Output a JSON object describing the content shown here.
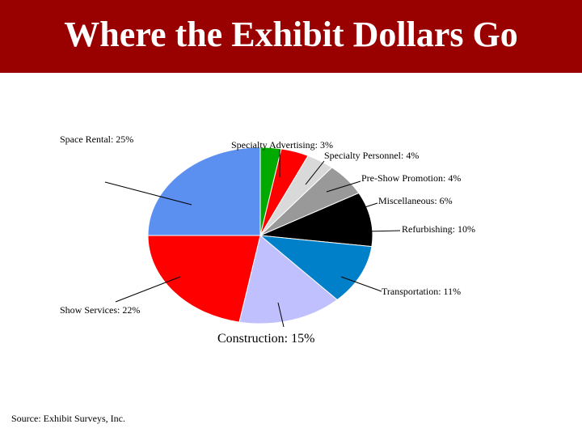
{
  "title": "Where the Exhibit Dollars Go",
  "source": "Source:  Exhibit Surveys, Inc.",
  "chart_data": {
    "type": "pie",
    "title": "Where the Exhibit Dollars Go",
    "slices": [
      {
        "label": "Specialty Advertising",
        "value": 3,
        "text": "Specialty Advertising:  3%",
        "color": "#00aa00"
      },
      {
        "label": "Specialty Personnel",
        "value": 4,
        "text": "Specialty Personnel:  4%",
        "color": "#ff0000"
      },
      {
        "label": "Pre-Show Promotion",
        "value": 4,
        "text": "Pre-Show Promotion:  4%",
        "color": "#d9d9d9"
      },
      {
        "label": "Miscellaneous",
        "value": 6,
        "text": "Miscellaneous:  6%",
        "color": "#999999"
      },
      {
        "label": "Refurbishing",
        "value": 10,
        "text": "Refurbishing:  10%",
        "color": "#000000"
      },
      {
        "label": "Transportation",
        "value": 11,
        "text": "Transportation:  11%",
        "color": "#0080c8"
      },
      {
        "label": "Construction",
        "value": 15,
        "text": "Construction:  15%",
        "color": "#c0c0ff"
      },
      {
        "label": "Show Services",
        "value": 22,
        "text": "Show Services:  22%",
        "color": "#ff0000"
      },
      {
        "label": "Space Rental",
        "value": 25,
        "text": "Space Rental:  25%",
        "color": "#5b8ff0"
      }
    ],
    "start_angle_deg": 0,
    "direction": "clockwise"
  }
}
